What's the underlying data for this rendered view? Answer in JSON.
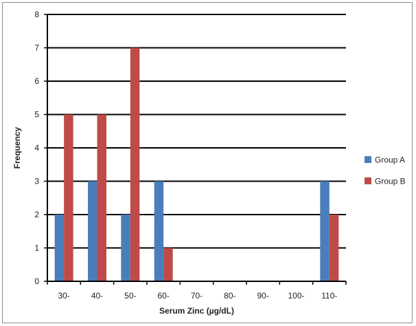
{
  "chart_data": {
    "type": "bar",
    "xlabel": "Serum Zinc (µg/dL)",
    "ylabel": "Frequency",
    "categories": [
      "30-",
      "40-",
      "50-",
      "60-",
      "70-",
      "80-",
      "90-",
      "100-",
      "110-"
    ],
    "ylim": [
      0,
      8
    ],
    "yticks": [
      0,
      1,
      2,
      3,
      4,
      5,
      6,
      7,
      8
    ],
    "grid": true,
    "legend_position": "right",
    "series": [
      {
        "name": "Group A",
        "color": "#4a7ebb",
        "values": [
          2,
          3,
          2,
          3,
          0,
          0,
          0,
          0,
          3
        ]
      },
      {
        "name": "Group B",
        "color": "#be4b48",
        "values": [
          5,
          5,
          7,
          1,
          0,
          0,
          0,
          0,
          2
        ]
      }
    ]
  }
}
